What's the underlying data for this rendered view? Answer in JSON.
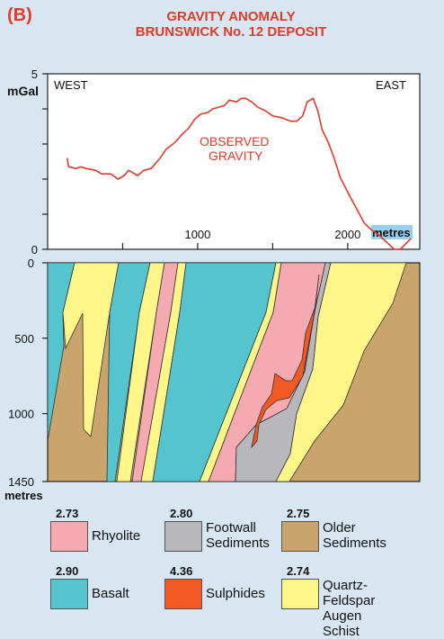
{
  "panel_label": "(B)",
  "title_line1": "GRAVITY ANOMALY",
  "title_line2": "BRUNSWICK No. 12 DEPOSIT",
  "chart_data": {
    "type": "line",
    "series": [
      {
        "name": "OBSERVED GRAVITY",
        "color": "#e03a2a",
        "x": [
          130,
          140,
          190,
          220,
          260,
          320,
          360,
          420,
          470,
          510,
          540,
          600,
          640,
          690,
          720,
          750,
          790,
          850,
          890,
          940,
          980,
          1020,
          1070,
          1100,
          1140,
          1180,
          1210,
          1260,
          1290,
          1320,
          1360,
          1400,
          1450,
          1500,
          1560,
          1620,
          1660,
          1700,
          1730,
          1770,
          1800,
          1830,
          1870,
          1910,
          1950,
          2010,
          2060,
          2110,
          2160,
          2210,
          2260,
          2310,
          2350,
          2420
        ],
        "y": [
          2.6,
          2.35,
          2.3,
          2.35,
          2.3,
          2.25,
          2.15,
          2.15,
          2.0,
          2.1,
          2.25,
          2.1,
          2.25,
          2.3,
          2.45,
          2.6,
          2.85,
          3.05,
          3.25,
          3.45,
          3.7,
          3.85,
          3.9,
          4.0,
          4.05,
          4.1,
          4.25,
          4.2,
          4.3,
          4.3,
          4.2,
          4.05,
          3.95,
          3.8,
          3.75,
          3.65,
          3.65,
          3.8,
          4.2,
          4.3,
          3.95,
          3.4,
          3.05,
          2.6,
          2.05,
          1.55,
          1.15,
          0.75,
          0.55,
          0.4,
          0.2,
          0.0,
          0.0,
          0.3
        ]
      }
    ],
    "xlim": [
      0,
      2480
    ],
    "ylim": [
      0,
      5
    ],
    "x_ticks": [
      0,
      500,
      1000,
      1500,
      2000
    ],
    "x_tick_labels": {
      "1000": "1000",
      "2000": "2000"
    },
    "y_ticks": [
      0,
      1,
      2,
      3,
      4,
      5
    ],
    "y_tick_labels": {
      "0": "0",
      "5": "5"
    },
    "ylabel": "mGal",
    "xlabel": "metres",
    "annotations": {
      "west": "WEST",
      "east": "EAST",
      "curve_label_1": "OBSERVED",
      "curve_label_2": "GRAVITY"
    }
  },
  "section": {
    "depth_labels": [
      {
        "text": "0",
        "depth": 0
      },
      {
        "text": "500",
        "depth": 500
      },
      {
        "text": "1000",
        "depth": 1000
      },
      {
        "text": "1450",
        "depth": 1450
      }
    ],
    "depth_unit": "metres",
    "max_depth": 1450
  },
  "legend": [
    {
      "density": "2.73",
      "label": "Rhyolite",
      "color": "#f4aab0"
    },
    {
      "density": "2.80",
      "label": "Footwall\nSediments",
      "color": "#b8b8bc"
    },
    {
      "density": "2.75",
      "label": "Older\nSediments",
      "color": "#c9a46c"
    },
    {
      "density": "2.90",
      "label": "Basalt",
      "color": "#54c5cf"
    },
    {
      "density": "4.36",
      "label": "Sulphides",
      "color": "#f15a22"
    },
    {
      "density": "2.74",
      "label": "Quartz-Feldspar\nAugen Schist",
      "color": "#fff68a"
    }
  ]
}
